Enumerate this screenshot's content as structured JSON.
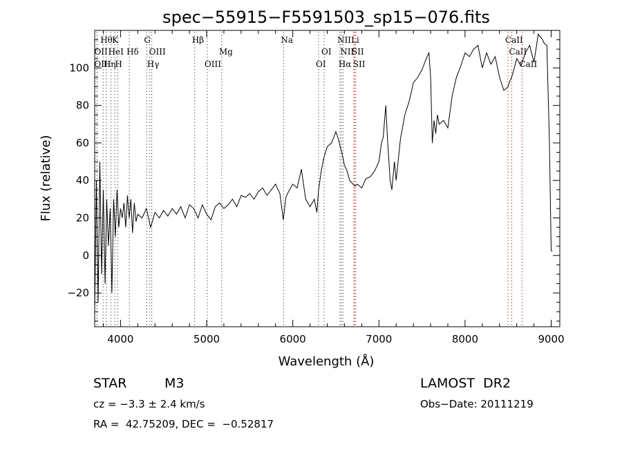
{
  "chart_data": {
    "type": "line",
    "title": "spec−55915−F5591503_sp15−076.fits",
    "xlabel": "Wavelength (Å)",
    "ylabel": "Flux (relative)",
    "xlim": [
      3700,
      9100
    ],
    "ylim": [
      -38,
      120
    ],
    "x_ticks": [
      4000,
      5000,
      6000,
      7000,
      8000,
      9000
    ],
    "x_tick_labels": [
      "4000",
      "5000",
      "6000",
      "7000",
      "8000",
      "9000"
    ],
    "y_ticks": [
      -20,
      0,
      20,
      40,
      60,
      80,
      100
    ],
    "y_tick_labels": [
      "−20",
      "0",
      "20",
      "40",
      "60",
      "80",
      "100"
    ],
    "grid": false,
    "series": [
      {
        "x": [
          3700,
          3720,
          3740,
          3760,
          3780,
          3800,
          3820,
          3840,
          3860,
          3880,
          3900,
          3920,
          3940,
          3960,
          3980,
          4000,
          4020,
          4040,
          4060,
          4080,
          4100,
          4120,
          4140,
          4160,
          4180,
          4200,
          4250,
          4300,
          4350,
          4400,
          4450,
          4500,
          4550,
          4600,
          4650,
          4700,
          4750,
          4800,
          4850,
          4900,
          4950,
          5000,
          5050,
          5100,
          5150,
          5200,
          5250,
          5300,
          5350,
          5400,
          5450,
          5500,
          5550,
          5600,
          5650,
          5700,
          5750,
          5800,
          5850,
          5890,
          5920,
          5950,
          6000,
          6050,
          6100,
          6150,
          6200,
          6250,
          6280,
          6300,
          6330,
          6360,
          6400,
          6450,
          6500,
          6530,
          6550,
          6570,
          6600,
          6630,
          6660,
          6700,
          6720,
          6750,
          6800,
          6850,
          6900,
          6950,
          7000,
          7030,
          7050,
          7080,
          7100,
          7130,
          7150,
          7180,
          7200,
          7250,
          7300,
          7350,
          7400,
          7450,
          7500,
          7550,
          7580,
          7600,
          7610,
          7620,
          7640,
          7660,
          7680,
          7700,
          7750,
          7800,
          7850,
          7900,
          7950,
          8000,
          8050,
          8100,
          8150,
          8200,
          8250,
          8300,
          8350,
          8400,
          8450,
          8500,
          8520,
          8540,
          8560,
          8600,
          8650,
          8700,
          8750,
          8800,
          8850,
          8900,
          8920,
          8950,
          8980,
          9000,
          9010
        ],
        "y": [
          -30,
          40,
          -25,
          50,
          -10,
          35,
          -15,
          30,
          5,
          25,
          -20,
          30,
          10,
          35,
          15,
          25,
          20,
          28,
          15,
          32,
          20,
          30,
          12,
          28,
          18,
          22,
          20,
          25,
          15,
          23,
          20,
          24,
          21,
          25,
          22,
          26,
          20,
          27,
          25,
          20,
          27,
          22,
          19,
          26,
          28,
          25,
          27,
          30,
          26,
          32,
          31,
          33,
          30,
          34,
          36,
          32,
          35,
          38,
          33,
          19,
          31,
          34,
          38,
          36,
          46,
          30,
          26,
          30,
          23,
          35,
          45,
          52,
          58,
          60,
          66,
          62,
          58,
          55,
          48,
          45,
          40,
          38,
          37,
          38,
          36,
          41,
          42,
          45,
          50,
          60,
          63,
          80,
          62,
          40,
          35,
          50,
          40,
          62,
          75,
          82,
          92,
          95,
          99,
          105,
          108,
          95,
          78,
          60,
          72,
          65,
          75,
          70,
          72,
          68,
          85,
          95,
          101,
          108,
          106,
          110,
          112,
          100,
          108,
          102,
          106,
          95,
          88,
          90,
          93,
          95,
          98,
          105,
          101,
          108,
          112,
          103,
          118,
          115,
          113,
          112,
          60,
          3,
          2
        ]
      }
    ],
    "line_markers": [
      {
        "label": "Hθ",
        "x": 3798,
        "row": 1
      },
      {
        "label": "K",
        "x": 3934,
        "row": 1
      },
      {
        "label": "G",
        "x": 4305,
        "row": 1
      },
      {
        "label": "Hβ",
        "x": 4861,
        "row": 1
      },
      {
        "label": "Na",
        "x": 5893,
        "row": 1
      },
      {
        "label": "NII",
        "x": 6548,
        "row": 1
      },
      {
        "label": "Li",
        "x": 6708,
        "row": 1
      },
      {
        "label": "CaII",
        "x": 8498,
        "row": 1
      },
      {
        "label": "OII",
        "x": 3727,
        "row": 2
      },
      {
        "label": "HeI",
        "x": 3889,
        "row": 2
      },
      {
        "label": "Hδ",
        "x": 4102,
        "row": 2
      },
      {
        "label": "OIII",
        "x": 4363,
        "row": 2
      },
      {
        "label": "Mg",
        "x": 5175,
        "row": 2
      },
      {
        "label": "OI",
        "x": 6364,
        "row": 2
      },
      {
        "label": "NII",
        "x": 6583,
        "row": 2
      },
      {
        "label": "SII",
        "x": 6716,
        "row": 2
      },
      {
        "label": "CaII",
        "x": 8542,
        "row": 2
      },
      {
        "label": "OIII",
        "x": 3727,
        "row": 3
      },
      {
        "label": "Hη",
        "x": 3835,
        "row": 3
      },
      {
        "label": "H",
        "x": 3968,
        "row": 3
      },
      {
        "label": "Hγ",
        "x": 4340,
        "row": 3
      },
      {
        "label": "OIII",
        "x": 5007,
        "row": 3
      },
      {
        "label": "OI",
        "x": 6300,
        "row": 3
      },
      {
        "label": "Hα",
        "x": 6563,
        "row": 3
      },
      {
        "label": "SII",
        "x": 6731,
        "row": 3
      },
      {
        "label": "CaII",
        "x": 8662,
        "row": 3
      }
    ]
  },
  "info": {
    "obj_class": "STAR",
    "subclass": "M3",
    "survey": "LAMOST  DR2",
    "redshift": "cz = −3.3 ± 2.4 km/s",
    "obs_date": "Obs−Date: 20111219",
    "coords": "RA =  42.75209, DEC =  −0.52817"
  }
}
